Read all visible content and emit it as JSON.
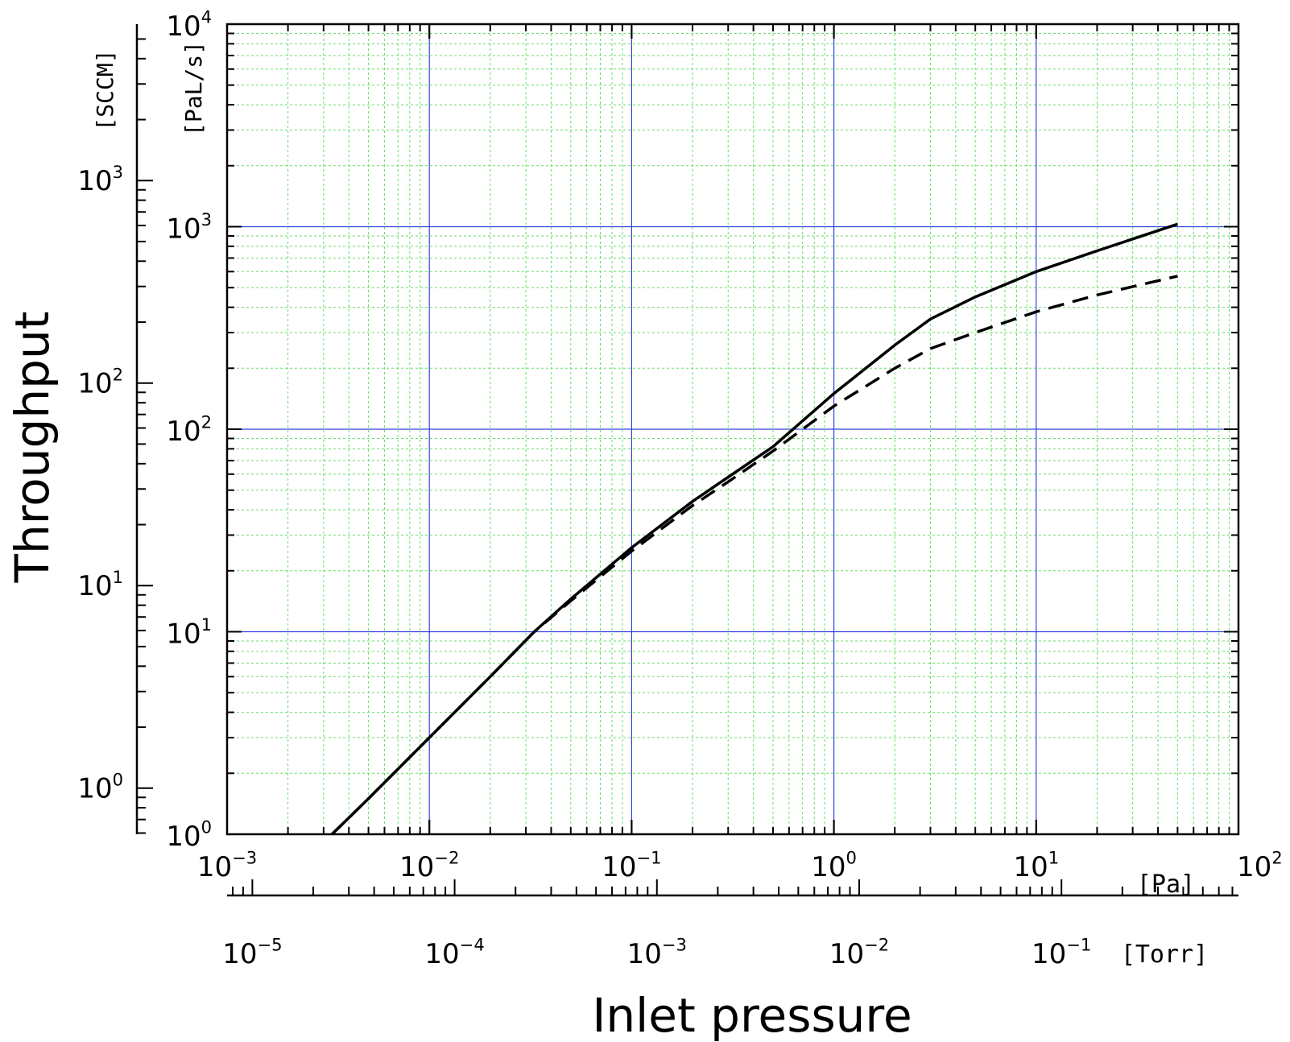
{
  "chart_data": {
    "type": "line",
    "x_scale": "log",
    "y_scale": "log",
    "xlabel": "Inlet pressure",
    "ylabel": "Throughput",
    "xlim": [
      0.001,
      100
    ],
    "ylim": [
      1,
      10000
    ],
    "x_unit": "[Pa]",
    "x2_unit": "[Torr]",
    "x2_lim": [
      7.5e-06,
      0.75
    ],
    "y_unit": "[PaL/s]",
    "y2_unit": "[SCCM]",
    "y2_lim": [
      0.592,
      5920
    ],
    "x_ticks": [
      "10^-3",
      "10^-2",
      "10^-1",
      "10^0",
      "10^1",
      "10^2"
    ],
    "x2_ticks": [
      "10^-5",
      "10^-4",
      "10^-3",
      "10^-2",
      "10^-1"
    ],
    "y_ticks": [
      "10^0",
      "10^1",
      "10^2",
      "10^3",
      "10^4"
    ],
    "y2_ticks": [
      "10^0",
      "10^1",
      "10^2",
      "10^3"
    ],
    "grid": true,
    "colors": {
      "major_grid": "#3344dd",
      "minor_grid": "#66dd66",
      "curve": "#000000"
    },
    "series": [
      {
        "style": "solid",
        "x": [
          0.0033,
          0.005,
          0.01,
          0.02,
          0.033,
          0.05,
          0.1,
          0.2,
          0.3,
          0.5,
          1,
          2,
          3,
          5,
          10,
          20,
          50
        ],
        "y": [
          1,
          1.5,
          3,
          6,
          10,
          14.5,
          26,
          44,
          58,
          82,
          150,
          260,
          350,
          450,
          600,
          760,
          1030
        ]
      },
      {
        "style": "dashed",
        "x": [
          0.0033,
          0.005,
          0.01,
          0.02,
          0.033,
          0.05,
          0.1,
          0.2,
          0.3,
          0.5,
          1,
          2,
          3,
          5,
          10,
          20,
          50
        ],
        "y": [
          1,
          1.5,
          3,
          6,
          10,
          14.2,
          25,
          42,
          55,
          78,
          130,
          200,
          250,
          300,
          380,
          460,
          570
        ]
      }
    ]
  }
}
